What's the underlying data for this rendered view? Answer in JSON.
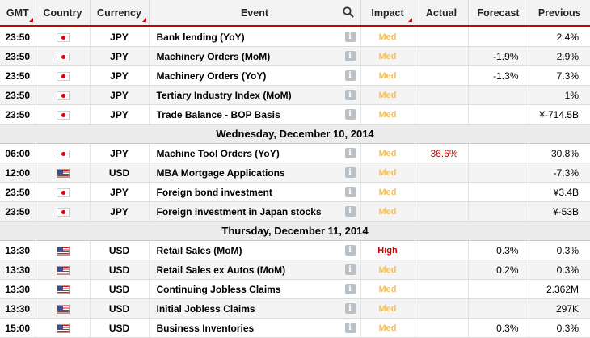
{
  "headers": {
    "gmt": "GMT",
    "country": "Country",
    "currency": "Currency",
    "event": "Event",
    "impact": "Impact",
    "actual": "Actual",
    "forecast": "Forecast",
    "previous": "Previous"
  },
  "colors": {
    "accent": "#cc0000",
    "impact_med": "#f5c05a",
    "impact_high": "#d40000"
  },
  "rows": [
    {
      "type": "event",
      "time": "23:50",
      "flag": "jp-flag-icon",
      "currency": "JPY",
      "event": "Bank lending (YoY)",
      "impact": "Med",
      "actual": "",
      "forecast": "",
      "previous": "2.4%"
    },
    {
      "type": "event",
      "time": "23:50",
      "flag": "jp-flag-icon",
      "currency": "JPY",
      "event": "Machinery Orders (MoM)",
      "impact": "Med",
      "actual": "",
      "forecast": "-1.9%",
      "previous": "2.9%"
    },
    {
      "type": "event",
      "time": "23:50",
      "flag": "jp-flag-icon",
      "currency": "JPY",
      "event": "Machinery Orders (YoY)",
      "impact": "Med",
      "actual": "",
      "forecast": "-1.3%",
      "previous": "7.3%"
    },
    {
      "type": "event",
      "time": "23:50",
      "flag": "jp-flag-icon",
      "currency": "JPY",
      "event": "Tertiary Industry Index (MoM)",
      "impact": "Med",
      "actual": "",
      "forecast": "",
      "previous": "1%"
    },
    {
      "type": "event",
      "time": "23:50",
      "flag": "jp-flag-icon",
      "currency": "JPY",
      "event": "Trade Balance - BOP Basis",
      "impact": "Med",
      "actual": "",
      "forecast": "",
      "previous": "¥-714.5B"
    },
    {
      "type": "date",
      "label": "Wednesday, December 10, 2014"
    },
    {
      "type": "event",
      "time": "06:00",
      "flag": "jp-flag-icon",
      "currency": "JPY",
      "event": "Machine Tool Orders (YoY)",
      "impact": "Med",
      "actual": "36.6%",
      "forecast": "",
      "previous": "30.8%"
    },
    {
      "type": "event",
      "time": "12:00",
      "flag": "us-flag-icon",
      "currency": "USD",
      "event": "MBA Mortgage Applications",
      "impact": "Med",
      "actual": "",
      "forecast": "",
      "previous": "-7.3%"
    },
    {
      "type": "event",
      "time": "23:50",
      "flag": "jp-flag-icon",
      "currency": "JPY",
      "event": "Foreign bond investment",
      "impact": "Med",
      "actual": "",
      "forecast": "",
      "previous": "¥3.4B"
    },
    {
      "type": "event",
      "time": "23:50",
      "flag": "jp-flag-icon",
      "currency": "JPY",
      "event": "Foreign investment in Japan stocks",
      "impact": "Med",
      "actual": "",
      "forecast": "",
      "previous": "¥-53B"
    },
    {
      "type": "date",
      "label": "Thursday, December 11, 2014"
    },
    {
      "type": "event",
      "time": "13:30",
      "flag": "us-flag-icon",
      "currency": "USD",
      "event": "Retail Sales (MoM)",
      "impact": "High",
      "actual": "",
      "forecast": "0.3%",
      "previous": "0.3%"
    },
    {
      "type": "event",
      "time": "13:30",
      "flag": "us-flag-icon",
      "currency": "USD",
      "event": "Retail Sales ex Autos (MoM)",
      "impact": "Med",
      "actual": "",
      "forecast": "0.2%",
      "previous": "0.3%"
    },
    {
      "type": "event",
      "time": "13:30",
      "flag": "us-flag-icon",
      "currency": "USD",
      "event": "Continuing Jobless Claims",
      "impact": "Med",
      "actual": "",
      "forecast": "",
      "previous": "2.362M"
    },
    {
      "type": "event",
      "time": "13:30",
      "flag": "us-flag-icon",
      "currency": "USD",
      "event": "Initial Jobless Claims",
      "impact": "Med",
      "actual": "",
      "forecast": "",
      "previous": "297K"
    },
    {
      "type": "event",
      "time": "15:00",
      "flag": "us-flag-icon",
      "currency": "USD",
      "event": "Business Inventories",
      "impact": "Med",
      "actual": "",
      "forecast": "0.3%",
      "previous": "0.3%"
    }
  ]
}
